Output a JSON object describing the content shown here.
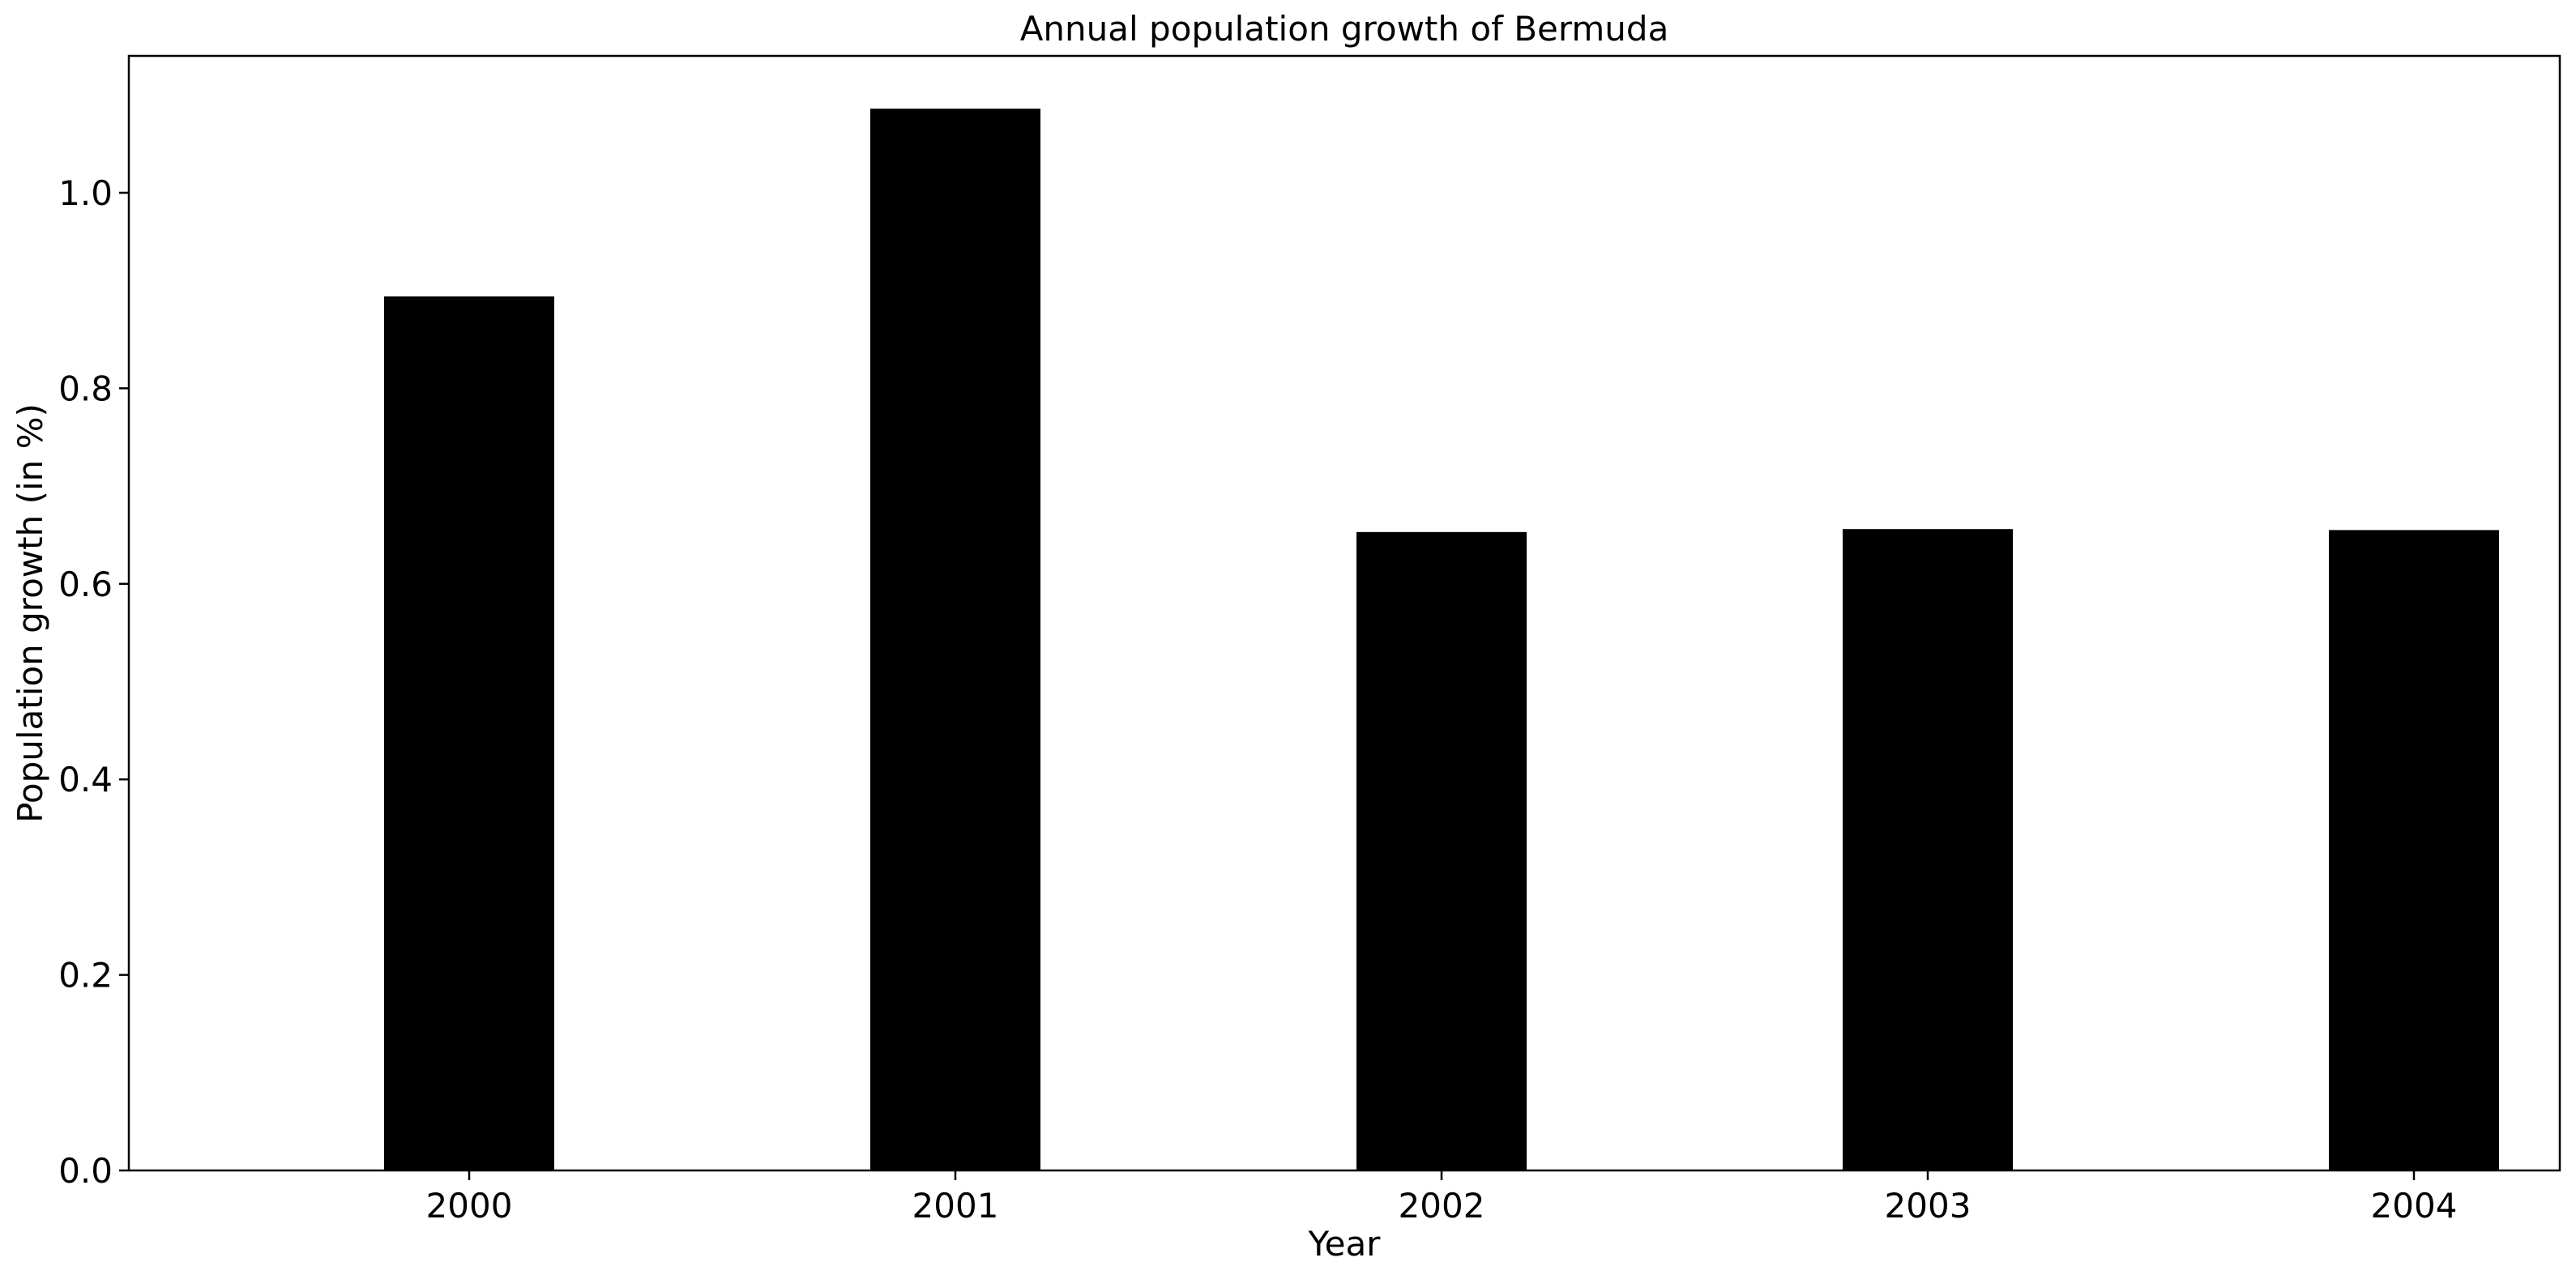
{
  "chart_data": {
    "type": "bar",
    "title": "Annual population growth of Bermuda",
    "xlabel": "Year",
    "ylabel": "Population growth (in %)",
    "categories": [
      "2000",
      "2001",
      "2002",
      "2003",
      "2004"
    ],
    "values": [
      0.894,
      1.086,
      0.653,
      0.656,
      0.655
    ],
    "ylim": [
      0,
      1.14
    ],
    "yticks": [
      0.0,
      0.2,
      0.4,
      0.6,
      0.8,
      1.0
    ],
    "ytick_labels": [
      "0.0",
      "0.2",
      "0.4",
      "0.6",
      "0.8",
      "1.0"
    ],
    "bar_color": "#000000",
    "grid": false,
    "legend": false
  }
}
